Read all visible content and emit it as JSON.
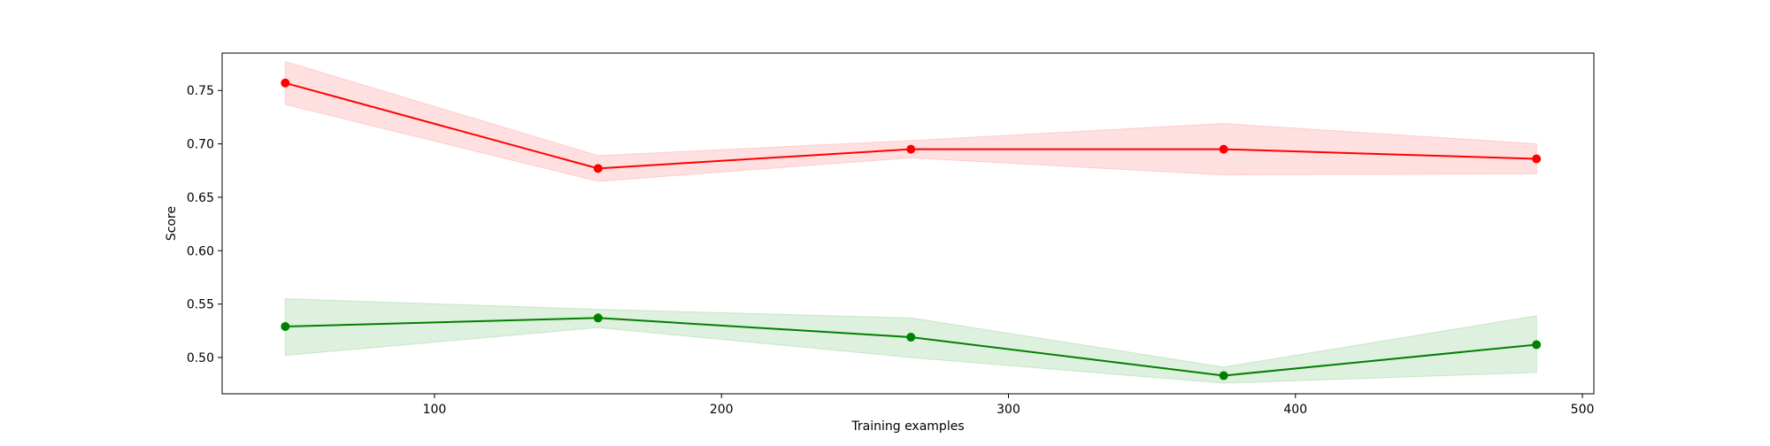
{
  "chart_data": {
    "type": "line",
    "title": "",
    "xlabel": "Training examples",
    "ylabel": "Score",
    "xlim": [
      26,
      504
    ],
    "ylim": [
      0.466,
      0.785
    ],
    "xticks": [
      100,
      200,
      300,
      400,
      500
    ],
    "yticks": [
      0.5,
      0.55,
      0.6,
      0.65,
      0.7,
      0.75
    ],
    "xtick_labels": [
      "100",
      "200",
      "300",
      "400",
      "500"
    ],
    "ytick_labels": [
      "0.50",
      "0.55",
      "0.60",
      "0.65",
      "0.70",
      "0.75"
    ],
    "grid": false,
    "legend": "none",
    "x": [
      48,
      157,
      266,
      375,
      484
    ],
    "series": [
      {
        "color": "#ff0000",
        "band_color": "#ffcccc",
        "marker": "circle",
        "values": [
          0.757,
          0.677,
          0.695,
          0.695,
          0.686
        ],
        "band_upper": [
          0.777,
          0.689,
          0.703,
          0.719,
          0.7
        ],
        "band_lower": [
          0.737,
          0.665,
          0.687,
          0.671,
          0.672
        ]
      },
      {
        "color": "#008000",
        "band_color": "#c8e6c8",
        "marker": "circle",
        "values": [
          0.529,
          0.537,
          0.519,
          0.483,
          0.512
        ],
        "band_upper": [
          0.555,
          0.545,
          0.537,
          0.491,
          0.539
        ],
        "band_lower": [
          0.502,
          0.528,
          0.5,
          0.476,
          0.486
        ]
      }
    ]
  }
}
